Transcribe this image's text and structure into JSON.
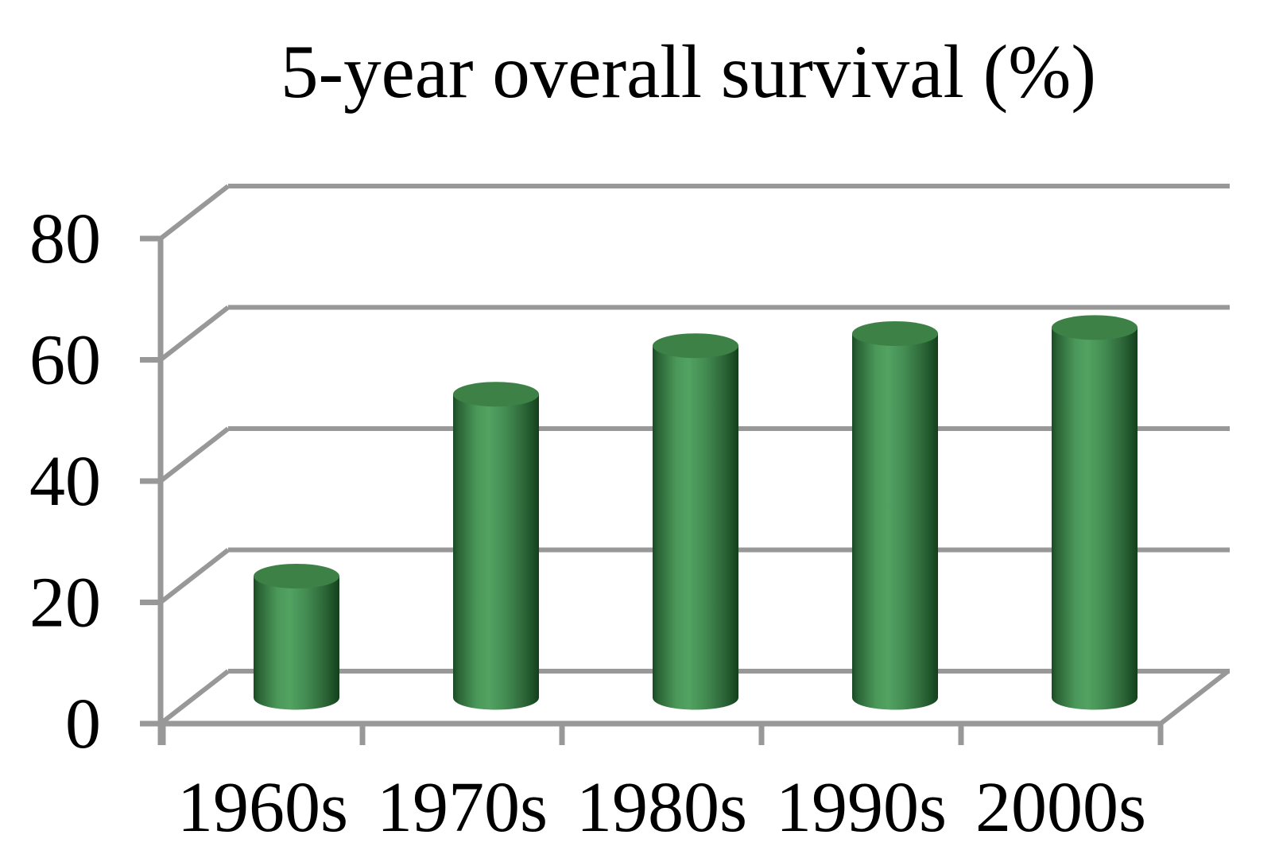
{
  "page": {
    "background": "#ffffff"
  },
  "chart_data": {
    "type": "bar",
    "subtype": "3d-cylinder",
    "title": "5-year overall survival (%)",
    "categories": [
      "1960s",
      "1970s",
      "1980s",
      "1990s",
      "2000s"
    ],
    "values": [
      20,
      50,
      58,
      60,
      61
    ],
    "xlabel": "",
    "ylabel": "",
    "ylim": [
      0,
      80
    ],
    "yticks": [
      0,
      20,
      40,
      60,
      80
    ],
    "grid": true,
    "legend": "none",
    "colors": {
      "axis_gray": "#989898",
      "text_black": "#000000",
      "background": "#ffffff",
      "bar_top_face": "#3d8147",
      "bar_body_highlight": "#52a262",
      "bar_body_dark_left": "#1b4a24",
      "bar_body_dark_right": "#143f1c",
      "bar_gradient_stops": [
        [
          0,
          "#1b4a24"
        ],
        [
          0.06,
          "#2a6335"
        ],
        [
          0.28,
          "#4b995a"
        ],
        [
          0.42,
          "#52a262"
        ],
        [
          0.6,
          "#448e53"
        ],
        [
          0.8,
          "#306b3c"
        ],
        [
          0.93,
          "#1d5127"
        ],
        [
          1,
          "#143f1c"
        ]
      ]
    }
  }
}
